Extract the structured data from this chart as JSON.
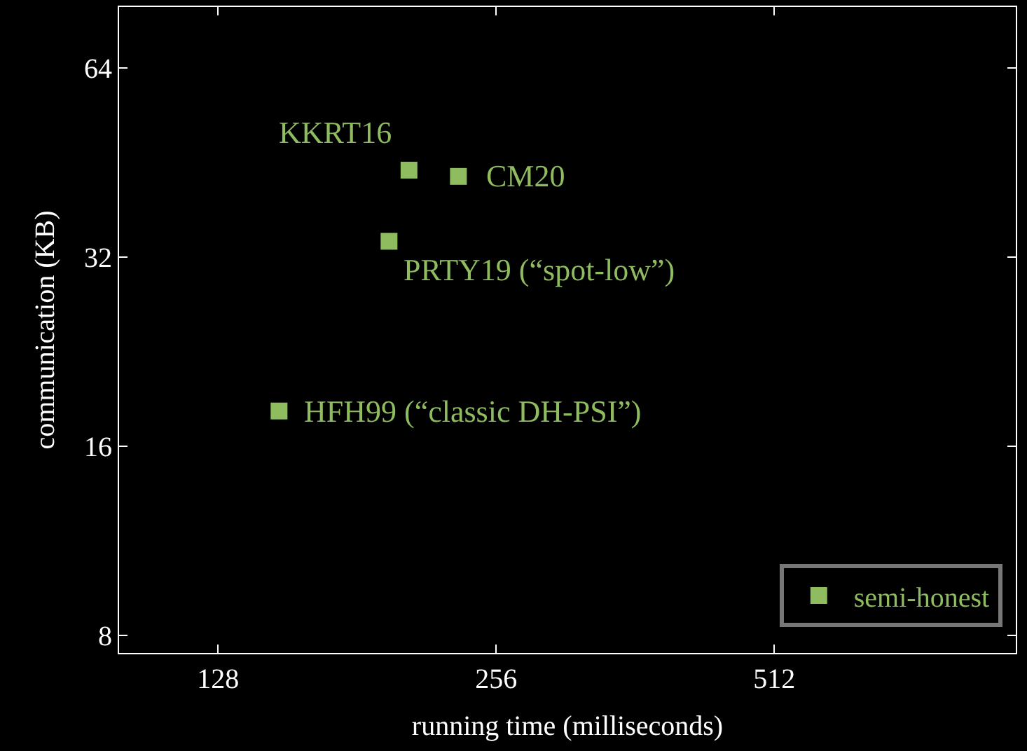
{
  "chart_data": {
    "type": "scatter",
    "xlabel": "running time (milliseconds)",
    "ylabel": "communication (KB)",
    "log": "xy",
    "xlim": [
      100,
      935
    ],
    "ylim": [
      7.5,
      80
    ],
    "xticks": [
      128,
      256,
      512
    ],
    "yticks": [
      8,
      16,
      32,
      64
    ],
    "grid": false,
    "legend": "bottom right",
    "marker": "square",
    "series": [
      {
        "name": "semi-honest",
        "color": "#8fbc5f",
        "x": [
          206,
          233,
          196,
          149
        ],
        "values": [
          44,
          43,
          33.9,
          18.2
        ]
      }
    ],
    "annotations": [
      {
        "text": "KKRT16",
        "x": 206,
        "y": 44
      },
      {
        "text": "CM20",
        "x": 233,
        "y": 43
      },
      {
        "text": "PRTY19 (“spot-low”)",
        "x": 196,
        "y": 33.9
      },
      {
        "text": "HFH99 (“classic DH-PSI”)",
        "x": 149,
        "y": 18.2
      }
    ]
  }
}
